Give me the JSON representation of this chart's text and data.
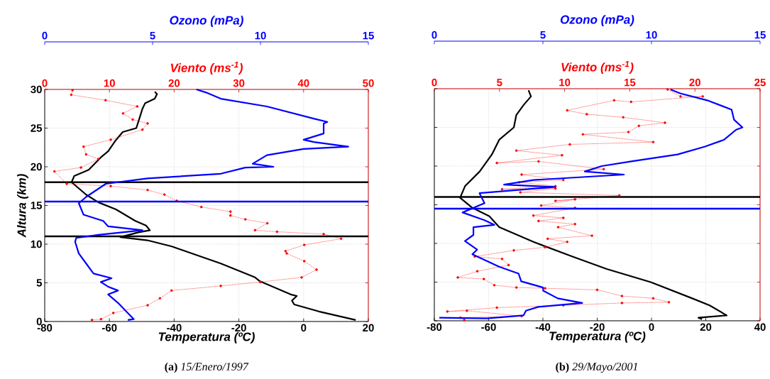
{
  "chart_data": [
    {
      "type": "line",
      "title": "**(a)** *15/Enero/1997*",
      "xlabel": "Temperatura (ºC)",
      "ylabel": "Altura (km)",
      "x2label": "Viento (ms$^{-1}$)",
      "xlim": [
        -80,
        20
      ],
      "xticks": [
        -80,
        -60,
        -40,
        -20,
        0,
        20
      ],
      "x2lim": [
        0,
        50
      ],
      "x2ticks": [
        0,
        10,
        20,
        30,
        40,
        50
      ],
      "ylim": [
        0,
        30
      ],
      "yticks": [
        0,
        5,
        10,
        15,
        20,
        25,
        30
      ],
      "grid": true,
      "ref_lines": [
        {
          "axis": "y",
          "value": 18,
          "color": "#000000"
        },
        {
          "axis": "y",
          "value": 11,
          "color": "#000000"
        }
      ],
      "series": [
        {
          "color": "#000000",
          "marker": "none",
          "line_style": "solid",
          "x": [
            16.1,
            4.7,
            -2.9,
            -3.6,
            -2.1,
            -4.0,
            -13.5,
            -15,
            -25.6,
            -40.7,
            -48.3,
            -56.6,
            -51.3,
            -47.5,
            -48.7,
            -52,
            -58,
            -63.4,
            -67.2,
            -71.7,
            -70.9,
            -66.4,
            -62.7,
            -60.4,
            -58.1,
            -55.9,
            -51.7,
            -51,
            -49.8,
            -49,
            -46,
            -45.3,
            -46
          ],
          "values": [
            0.2,
            1.3,
            2.2,
            2.7,
            3.3,
            3.5,
            5.2,
            5.7,
            7.5,
            9.7,
            10.5,
            10.9,
            11.5,
            11.8,
            12.4,
            13.0,
            14.5,
            15.4,
            16.4,
            18.0,
            18.8,
            19.6,
            21.2,
            22.0,
            23.4,
            24.5,
            25.0,
            25.9,
            27.5,
            28.2,
            28.8,
            29.4,
            29.7
          ]
        },
        {
          "color": "#ff0000",
          "axis": "x2",
          "marker": "circle",
          "line_style": "dotted",
          "x": [
            7.3,
            8.7,
            10.6,
            15.9,
            17.8,
            19.6,
            27.2,
            33.3,
            39.7,
            42.0,
            40.1,
            37.4,
            37.2,
            40.1,
            45.8,
            43.1,
            35.9,
            32.5,
            34.4,
            31.0,
            28.7,
            28.7,
            24.2,
            20.4,
            18.5,
            15.9,
            10.2,
            3.4,
            1.5,
            5.6,
            8.3,
            6.4,
            6.0,
            10.2,
            15.1,
            15.9,
            13.6,
            12.1,
            14.3,
            9.4,
            4.1,
            4.3
          ],
          "values": [
            0.2,
            0.3,
            1.1,
            2.1,
            3.0,
            4.0,
            4.6,
            5.1,
            5.7,
            6.7,
            7.8,
            8.8,
            9.1,
            9.9,
            10.7,
            11.3,
            11.6,
            11.8,
            12.7,
            13.2,
            13.7,
            14.2,
            14.8,
            15.6,
            16.4,
            17.0,
            17.5,
            17.8,
            19.4,
            19.9,
            21.0,
            21.6,
            22.6,
            23.5,
            24.8,
            25.6,
            26.1,
            26.9,
            27.8,
            28.6,
            29.3,
            29.9
          ]
        }
      ]
    },
    {
      "type": "line",
      "xlabel": "Ozono (mPa)",
      "xlim": [
        0,
        15
      ],
      "xticks": [
        0,
        5,
        10,
        15
      ],
      "ylim": [
        0,
        30
      ],
      "tick_labels": "x",
      "ref_lines": [
        {
          "axis": "y",
          "value": 15.5,
          "color": "#0000ff"
        }
      ],
      "series": [
        {
          "color": "#0000ff",
          "marker": "none",
          "line_style": "solid",
          "x": [
            3.85,
            4.13,
            3.85,
            3.4,
            2.94,
            3.4,
            2.94,
            2.6,
            3.1,
            2.26,
            1.92,
            1.58,
            1.41,
            1.46,
            2.49,
            4.53,
            2.94,
            2.71,
            1.8,
            1.58,
            1.92,
            2.83,
            4.76,
            8.16,
            9.3,
            10.6,
            9.64,
            10.3,
            12.0,
            14.07,
            12.48,
            12.0,
            12.93,
            12.93,
            13.1,
            12.5,
            10.3,
            8.16,
            7.48,
            7.03
          ],
          "values": [
            0.2,
            0.3,
            1.1,
            2.4,
            3.5,
            4.0,
            4.5,
            5.1,
            5.6,
            6.2,
            7.5,
            8.8,
            10.3,
            10.8,
            11.2,
            11.8,
            12.3,
            13.0,
            13.8,
            15.3,
            16.1,
            17.8,
            18.5,
            19.1,
            19.9,
            20.0,
            20.4,
            21.5,
            22.3,
            22.6,
            23.2,
            23.5,
            24.3,
            25.6,
            25.8,
            26.2,
            27.8,
            28.8,
            29.6,
            30.0
          ]
        }
      ]
    },
    {
      "type": "line",
      "title": "**(b)** *29/Mayo/2001*",
      "xlabel": "Temperatura (ºC)",
      "x2label": "Viento (ms$^{-1}$)",
      "xlim": [
        -80,
        40
      ],
      "xticks": [
        -80,
        -60,
        -40,
        -20,
        0,
        20,
        40
      ],
      "x2lim": [
        0,
        25
      ],
      "x2ticks": [
        0,
        5,
        10,
        15,
        20,
        25
      ],
      "ylim": [
        0,
        30
      ],
      "yticks": [
        0,
        5,
        10,
        15,
        20,
        25,
        30
      ],
      "grid": true,
      "tick_labels": "x",
      "ref_lines": [
        {
          "axis": "y",
          "value": 16,
          "color": "#000000"
        }
      ],
      "series": [
        {
          "color": "#000000",
          "marker": "none",
          "line_style": "solid",
          "x": [
            18.6,
            17.3,
            27.7,
            21.4,
            15.0,
            -0.3,
            -16.5,
            -29.1,
            -43.5,
            -56.1,
            -59.7,
            -66,
            -70.5,
            -68.7,
            -63.3,
            -58.8,
            -56.1,
            -50.7,
            -49.8,
            -47.1,
            -44.4,
            -45.3
          ],
          "values": [
            0.2,
            0.4,
            0.7,
            2.0,
            2.9,
            5.0,
            6.7,
            8.3,
            10.2,
            12.1,
            13.5,
            14.6,
            15.9,
            17.4,
            19.3,
            21.5,
            23.4,
            25.0,
            26.6,
            27.9,
            29.0,
            29.8
          ]
        },
        {
          "color": "#ff0000",
          "axis": "x2",
          "marker": "circle",
          "line_style": "dotted",
          "x": [
            17.9,
            18.9,
            20.6,
            15.1,
            13.8,
            10.2,
            11.7,
            14.5,
            17.7,
            15.7,
            14.9,
            11.4,
            16.8,
            10.4,
            6.3,
            9.8,
            4.8,
            8.0,
            13.0,
            6.7,
            9.9,
            6.5,
            9.3,
            5.2,
            9.3,
            6.6,
            14.2,
            9.3,
            10.8,
            8.2,
            10.8,
            7.6,
            9.9,
            8.0,
            10.8,
            9.5,
            12.1,
            8.7,
            10.2,
            8.5,
            6.1,
            3.1,
            5.2,
            5.7,
            3.3,
            1.8,
            3.8,
            4.6,
            6.3,
            8.5,
            12.5,
            14.4,
            16.8,
            18.0,
            14.4,
            9.9,
            4.8,
            1.0,
            2.5,
            6.7,
            2.0,
            2.3
          ],
          "values": [
            29.9,
            29.0,
            29.0,
            28.3,
            28.5,
            27.2,
            26.7,
            26.3,
            25.6,
            25.2,
            24.4,
            24.1,
            23.1,
            22.8,
            22.0,
            21.4,
            20.4,
            20.6,
            19.6,
            18.9,
            18.2,
            17.9,
            17.4,
            17.0,
            17.1,
            16.6,
            16.2,
            15.5,
            15.7,
            14.9,
            14.6,
            13.6,
            13.3,
            12.9,
            12.5,
            12.1,
            11.0,
            10.6,
            10.2,
            9.5,
            9.1,
            8.3,
            8.0,
            7.2,
            6.4,
            5.6,
            5.4,
            4.6,
            4.3,
            4.2,
            4.0,
            3.2,
            2.9,
            2.4,
            2.3,
            2.0,
            1.7,
            1.2,
            1.3,
            0.6,
            0.4,
            0.1
          ]
        }
      ]
    },
    {
      "type": "line",
      "xlabel": "Ozono (mPa)",
      "xlim": [
        0,
        15
      ],
      "xticks": [
        0,
        5,
        10,
        15
      ],
      "ylim": [
        0,
        30
      ],
      "tick_labels": "x",
      "ref_lines": [
        {
          "axis": "y",
          "value": 14.5,
          "color": "#0000ff"
        }
      ],
      "series": [
        {
          "color": "#0000ff",
          "marker": "none",
          "line_style": "solid",
          "x": [
            0.23,
            2.42,
            4.11,
            4.22,
            4.79,
            6.81,
            5.68,
            5.01,
            5.01,
            4.0,
            3.88,
            2.98,
            1.75,
            1.97,
            1.41,
            1.8,
            1.8,
            2.76,
            2.31,
            1.3,
            2.31,
            2.08,
            5.57,
            3.21,
            4.56,
            8.73,
            6.93,
            7.71,
            9.07,
            11.2,
            12.44,
            13.34,
            13.9,
            14.19,
            13.8,
            13.69,
            12.56,
            11.32,
            10.87
          ],
          "values": [
            0.4,
            0.3,
            0.7,
            1.3,
            1.8,
            2.3,
            2.9,
            3.9,
            4.3,
            5.1,
            6.1,
            7.0,
            8.6,
            9.2,
            10.3,
            11.1,
            12.1,
            12.4,
            13.0,
            14.0,
            15.2,
            16.5,
            17.3,
            17.6,
            18.2,
            18.9,
            19.3,
            20.0,
            20.6,
            21.5,
            22.5,
            23.4,
            24.7,
            25.0,
            26.0,
            27.3,
            28.5,
            29.4,
            29.9
          ]
        }
      ]
    }
  ]
}
